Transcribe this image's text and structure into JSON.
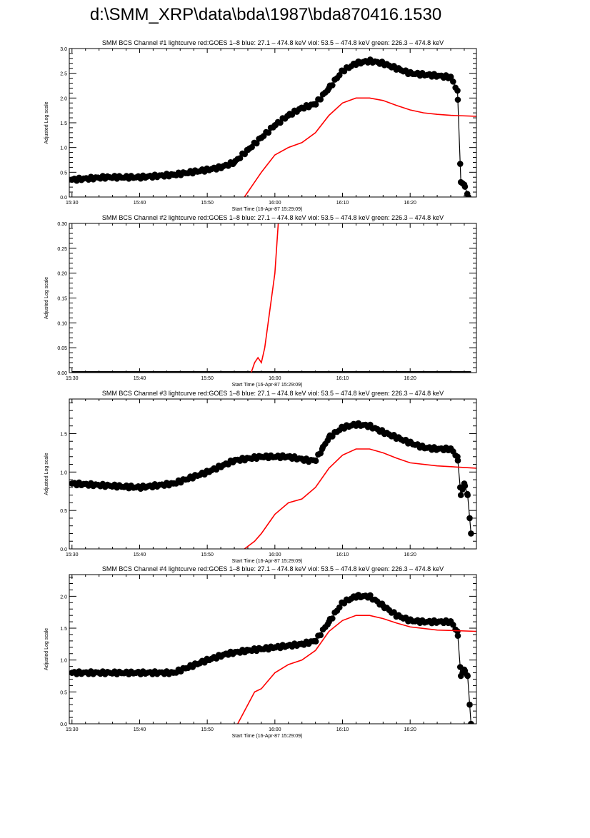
{
  "title": "d:\\SMM_XRP\\data\\bda\\1987\\bda870416.1530",
  "colors": {
    "goes": "#ff0000",
    "bcs": "#000000"
  },
  "chart_data": [
    {
      "type": "scatter",
      "title": "SMM BCS Channel #1 lightcurve  red:GOES 1–8  blue: 27.1 – 474.8 keV  viol: 53.5 – 474.8 keV  green: 226.3 – 474.8 keV",
      "xlabel": "Start Time (16-Apr-87 15:29:09)",
      "ylabel": "Adjusted Log scale",
      "x_units": "minutes after 15:30",
      "xlim": [
        -0.4,
        59.8
      ],
      "ylim": [
        0,
        3.0
      ],
      "xticks": [
        {
          "v": 0,
          "label": "15:30"
        },
        {
          "v": 10,
          "label": "15:40"
        },
        {
          "v": 20,
          "label": "15:50"
        },
        {
          "v": 30,
          "label": "16:00"
        },
        {
          "v": 40,
          "label": "16:10"
        },
        {
          "v": 50,
          "label": "16:20"
        }
      ],
      "yticks": [
        {
          "v": 0,
          "label": "0.0"
        },
        {
          "v": 0.5,
          "label": "0.5"
        },
        {
          "v": 1.0,
          "label": "1.0"
        },
        {
          "v": 1.5,
          "label": "1.5"
        },
        {
          "v": 2.0,
          "label": "2.0"
        },
        {
          "v": 2.5,
          "label": "2.5"
        },
        {
          "v": 3.0,
          "label": "3.0"
        }
      ],
      "series": [
        {
          "name": "BCS channel",
          "style": "dots",
          "points": [
            [
              0,
              0.35
            ],
            [
              5,
              0.4
            ],
            [
              10,
              0.4
            ],
            [
              15,
              0.45
            ],
            [
              20,
              0.55
            ],
            [
              22,
              0.6
            ],
            [
              24,
              0.7
            ],
            [
              26,
              0.95
            ],
            [
              28,
              1.2
            ],
            [
              30,
              1.45
            ],
            [
              32,
              1.65
            ],
            [
              34,
              1.8
            ],
            [
              36,
              1.88
            ],
            [
              38,
              2.2
            ],
            [
              40,
              2.55
            ],
            [
              42,
              2.7
            ],
            [
              44,
              2.75
            ],
            [
              46,
              2.7
            ],
            [
              48,
              2.6
            ],
            [
              50,
              2.5
            ],
            [
              54,
              2.45
            ],
            [
              56,
              2.42
            ],
            [
              57,
              2.15
            ],
            [
              57.5,
              0.3
            ],
            [
              58,
              0.25
            ],
            [
              58.6,
              0.0
            ]
          ]
        },
        {
          "name": "GOES 1-8",
          "style": "line",
          "points": [
            [
              25.5,
              0
            ],
            [
              27,
              0.3
            ],
            [
              28,
              0.5
            ],
            [
              30,
              0.85
            ],
            [
              32,
              1.0
            ],
            [
              34,
              1.1
            ],
            [
              36,
              1.3
            ],
            [
              38,
              1.65
            ],
            [
              40,
              1.9
            ],
            [
              42,
              2.0
            ],
            [
              44,
              2.0
            ],
            [
              46,
              1.95
            ],
            [
              48,
              1.85
            ],
            [
              50,
              1.76
            ],
            [
              52,
              1.7
            ],
            [
              54,
              1.67
            ],
            [
              56,
              1.65
            ],
            [
              59.8,
              1.63
            ]
          ]
        }
      ]
    },
    {
      "type": "scatter",
      "title": "SMM BCS Channel #2 lightcurve  red:GOES 1–8  blue: 27.1 – 474.8 keV  viol: 53.5 – 474.8 keV  green: 226.3 – 474.8 keV",
      "xlabel": "Start Time (16-Apr-87 15:29:09)",
      "ylabel": "Adjusted Log scale",
      "x_units": "minutes after 15:30",
      "xlim": [
        -0.4,
        59.8
      ],
      "ylim": [
        0,
        0.3
      ],
      "xticks": [
        {
          "v": 0,
          "label": "15:30"
        },
        {
          "v": 10,
          "label": "15:40"
        },
        {
          "v": 20,
          "label": "15:50"
        },
        {
          "v": 30,
          "label": "16:00"
        },
        {
          "v": 40,
          "label": "16:10"
        },
        {
          "v": 50,
          "label": "16:20"
        }
      ],
      "yticks": [
        {
          "v": 0,
          "label": "0.00"
        },
        {
          "v": 0.05,
          "label": "0.05"
        },
        {
          "v": 0.1,
          "label": "0.10"
        },
        {
          "v": 0.15,
          "label": "0.15"
        },
        {
          "v": 0.2,
          "label": "0.20"
        },
        {
          "v": 0.25,
          "label": "0.25"
        },
        {
          "v": 0.3,
          "label": "0.30"
        }
      ],
      "series": [
        {
          "name": "BCS channel",
          "style": "dots",
          "points": [
            [
              0,
              0
            ],
            [
              59,
              0
            ]
          ]
        },
        {
          "name": "GOES 1-8",
          "style": "line",
          "points": [
            [
              26.5,
              0
            ],
            [
              27,
              0.02
            ],
            [
              27.5,
              0.03
            ],
            [
              28,
              0.02
            ],
            [
              28.5,
              0.05
            ],
            [
              29,
              0.1
            ],
            [
              29.5,
              0.15
            ],
            [
              30,
              0.2
            ],
            [
              30.5,
              0.3
            ]
          ]
        }
      ]
    },
    {
      "type": "scatter",
      "title": "SMM BCS Channel #3 lightcurve  red:GOES 1–8  blue: 27.1 – 474.8 keV  viol: 53.5 – 474.8 keV  green: 226.3 – 474.8 keV",
      "xlabel": "Start Time (16-Apr-87 15:29:09)",
      "ylabel": "Adjusted Log scale",
      "x_units": "minutes after 15:30",
      "xlim": [
        -0.4,
        59.8
      ],
      "ylim": [
        0,
        1.95
      ],
      "xticks": [
        {
          "v": 0,
          "label": "15:30"
        },
        {
          "v": 10,
          "label": "15:40"
        },
        {
          "v": 20,
          "label": "15:50"
        },
        {
          "v": 30,
          "label": "16:00"
        },
        {
          "v": 40,
          "label": "16:10"
        },
        {
          "v": 50,
          "label": "16:20"
        }
      ],
      "yticks": [
        {
          "v": 0,
          "label": "0.0"
        },
        {
          "v": 0.5,
          "label": "0.5"
        },
        {
          "v": 1.0,
          "label": "1.0"
        },
        {
          "v": 1.5,
          "label": "1.5"
        }
      ],
      "series": [
        {
          "name": "BCS channel",
          "style": "dots",
          "points": [
            [
              0,
              0.85
            ],
            [
              10,
              0.8
            ],
            [
              15,
              0.85
            ],
            [
              20,
              1.0
            ],
            [
              24,
              1.15
            ],
            [
              28,
              1.2
            ],
            [
              32,
              1.2
            ],
            [
              35,
              1.15
            ],
            [
              36,
              1.15
            ],
            [
              37,
              1.3
            ],
            [
              38,
              1.45
            ],
            [
              40,
              1.58
            ],
            [
              42,
              1.62
            ],
            [
              44,
              1.6
            ],
            [
              46,
              1.52
            ],
            [
              48,
              1.45
            ],
            [
              50,
              1.38
            ],
            [
              52,
              1.32
            ],
            [
              54,
              1.3
            ],
            [
              56,
              1.3
            ],
            [
              57,
              1.2
            ],
            [
              57.5,
              0.7
            ],
            [
              58,
              0.85
            ],
            [
              58.5,
              0.7
            ],
            [
              59,
              0.2
            ]
          ]
        },
        {
          "name": "GOES 1-8",
          "style": "line",
          "points": [
            [
              25.5,
              0
            ],
            [
              27,
              0.1
            ],
            [
              28,
              0.2
            ],
            [
              30,
              0.45
            ],
            [
              32,
              0.6
            ],
            [
              34,
              0.65
            ],
            [
              36,
              0.8
            ],
            [
              38,
              1.05
            ],
            [
              40,
              1.22
            ],
            [
              42,
              1.3
            ],
            [
              44,
              1.3
            ],
            [
              46,
              1.25
            ],
            [
              48,
              1.18
            ],
            [
              50,
              1.12
            ],
            [
              54,
              1.08
            ],
            [
              59.8,
              1.05
            ]
          ]
        }
      ]
    },
    {
      "type": "scatter",
      "title": "SMM BCS Channel #4 lightcurve  red:GOES 1–8  blue: 27.1 – 474.8 keV  viol: 53.5 – 474.8 keV  green: 226.3 – 474.8 keV",
      "xlabel": "Start Time (16-Apr-87 15:29:09)",
      "ylabel": "Adjusted Log scale",
      "x_units": "minutes after 15:30",
      "xlim": [
        -0.4,
        59.8
      ],
      "ylim": [
        0,
        2.34
      ],
      "xticks": [
        {
          "v": 0,
          "label": "15:30"
        },
        {
          "v": 10,
          "label": "15:40"
        },
        {
          "v": 20,
          "label": "15:50"
        },
        {
          "v": 30,
          "label": "16:00"
        },
        {
          "v": 40,
          "label": "16:10"
        },
        {
          "v": 50,
          "label": "16:20"
        }
      ],
      "yticks": [
        {
          "v": 0,
          "label": "0.0"
        },
        {
          "v": 0.5,
          "label": "0.5"
        },
        {
          "v": 1.0,
          "label": "1.0"
        },
        {
          "v": 1.5,
          "label": "1.5"
        },
        {
          "v": 2.0,
          "label": "2.0"
        }
      ],
      "series": [
        {
          "name": "BCS channel",
          "style": "dots",
          "points": [
            [
              0,
              0.8
            ],
            [
              10,
              0.8
            ],
            [
              15,
              0.8
            ],
            [
              20,
              1.0
            ],
            [
              23,
              1.1
            ],
            [
              26,
              1.15
            ],
            [
              30,
              1.2
            ],
            [
              34,
              1.25
            ],
            [
              36,
              1.3
            ],
            [
              38,
              1.6
            ],
            [
              40,
              1.9
            ],
            [
              42,
              2.0
            ],
            [
              44,
              2.0
            ],
            [
              46,
              1.85
            ],
            [
              48,
              1.7
            ],
            [
              50,
              1.62
            ],
            [
              52,
              1.6
            ],
            [
              56,
              1.6
            ],
            [
              57,
              1.45
            ],
            [
              57.5,
              0.75
            ],
            [
              58,
              0.85
            ],
            [
              58.5,
              0.75
            ],
            [
              59,
              0
            ]
          ]
        },
        {
          "name": "GOES 1-8",
          "style": "line",
          "points": [
            [
              24.5,
              0
            ],
            [
              26,
              0.3
            ],
            [
              27,
              0.5
            ],
            [
              28,
              0.55
            ],
            [
              30,
              0.8
            ],
            [
              32,
              0.93
            ],
            [
              34,
              1.0
            ],
            [
              36,
              1.15
            ],
            [
              38,
              1.45
            ],
            [
              40,
              1.62
            ],
            [
              42,
              1.7
            ],
            [
              44,
              1.7
            ],
            [
              46,
              1.65
            ],
            [
              48,
              1.58
            ],
            [
              50,
              1.52
            ],
            [
              54,
              1.47
            ],
            [
              59.8,
              1.45
            ]
          ]
        }
      ]
    }
  ]
}
